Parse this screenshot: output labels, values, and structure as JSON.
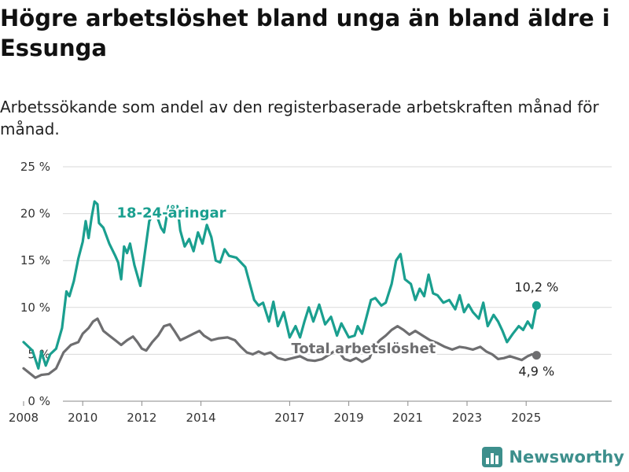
{
  "title": "Högre arbetslöshet bland unga än bland äldre i Essunga",
  "subtitle": "Arbetssökande som andel av den registerbaserade arbetskraften månad för månad.",
  "brand": {
    "name": "Newsworthy",
    "icon": "bar-chart-icon",
    "color": "#3d8f8c"
  },
  "chart_data": {
    "type": "line",
    "title": "",
    "xlabel": "",
    "ylabel": "",
    "ylim": [
      0,
      25
    ],
    "xlim": [
      2007.5,
      2026.0
    ],
    "grid": true,
    "y_ticks": [
      0,
      5,
      10,
      15,
      20,
      25
    ],
    "y_tick_labels": [
      "0 %",
      "5 %",
      "10 %",
      "15 %",
      "20 %",
      "25 %"
    ],
    "x_ticks": [
      2008,
      2010,
      2012,
      2014,
      2017,
      2019,
      2021,
      2023,
      2025
    ],
    "x_tick_labels": [
      "2008",
      "2010",
      "2012",
      "2014",
      "2017",
      "2019",
      "2021",
      "2023",
      "2025"
    ],
    "series": [
      {
        "name": "18-24-åringar",
        "color": "#1a9f8f",
        "end_label": "10,2 %",
        "points": [
          [
            2008.0,
            6.3
          ],
          [
            2008.3,
            5.4
          ],
          [
            2008.5,
            3.5
          ],
          [
            2008.6,
            5.3
          ],
          [
            2008.75,
            3.8
          ],
          [
            2008.9,
            5.0
          ],
          [
            2009.1,
            5.6
          ],
          [
            2009.3,
            7.8
          ],
          [
            2009.45,
            11.7
          ],
          [
            2009.55,
            11.2
          ],
          [
            2009.7,
            12.8
          ],
          [
            2009.85,
            15.2
          ],
          [
            2010.0,
            17.0
          ],
          [
            2010.1,
            19.2
          ],
          [
            2010.2,
            17.4
          ],
          [
            2010.3,
            19.6
          ],
          [
            2010.4,
            21.3
          ],
          [
            2010.5,
            21.0
          ],
          [
            2010.55,
            19.0
          ],
          [
            2010.7,
            18.5
          ],
          [
            2010.9,
            16.8
          ],
          [
            2011.1,
            15.5
          ],
          [
            2011.2,
            14.8
          ],
          [
            2011.3,
            13.0
          ],
          [
            2011.4,
            16.5
          ],
          [
            2011.5,
            15.8
          ],
          [
            2011.6,
            16.8
          ],
          [
            2011.75,
            14.5
          ],
          [
            2011.95,
            12.3
          ],
          [
            2012.1,
            15.8
          ],
          [
            2012.25,
            19.2
          ],
          [
            2012.45,
            20.3
          ],
          [
            2012.65,
            18.5
          ],
          [
            2012.75,
            18.0
          ],
          [
            2012.9,
            20.8
          ],
          [
            2013.05,
            19.8
          ],
          [
            2013.2,
            20.8
          ],
          [
            2013.3,
            18.2
          ],
          [
            2013.45,
            16.5
          ],
          [
            2013.6,
            17.3
          ],
          [
            2013.75,
            16.0
          ],
          [
            2013.9,
            18.0
          ],
          [
            2014.05,
            16.8
          ],
          [
            2014.2,
            18.8
          ],
          [
            2014.35,
            17.5
          ],
          [
            2014.5,
            15.0
          ],
          [
            2014.65,
            14.8
          ],
          [
            2014.8,
            16.2
          ],
          [
            2014.95,
            15.5
          ],
          [
            2015.2,
            15.3
          ],
          [
            2015.5,
            14.3
          ],
          [
            2015.8,
            10.8
          ],
          [
            2015.95,
            10.2
          ],
          [
            2016.1,
            10.5
          ],
          [
            2016.3,
            8.5
          ],
          [
            2016.45,
            10.6
          ],
          [
            2016.6,
            8.0
          ],
          [
            2016.8,
            9.5
          ],
          [
            2017.0,
            6.8
          ],
          [
            2017.2,
            8.0
          ],
          [
            2017.35,
            6.8
          ],
          [
            2017.5,
            8.5
          ],
          [
            2017.65,
            10.0
          ],
          [
            2017.8,
            8.5
          ],
          [
            2018.0,
            10.3
          ],
          [
            2018.2,
            8.2
          ],
          [
            2018.4,
            9.0
          ],
          [
            2018.6,
            7.0
          ],
          [
            2018.75,
            8.3
          ],
          [
            2019.0,
            6.8
          ],
          [
            2019.2,
            7.0
          ],
          [
            2019.3,
            8.0
          ],
          [
            2019.45,
            7.2
          ],
          [
            2019.6,
            9.0
          ],
          [
            2019.75,
            10.8
          ],
          [
            2019.9,
            11.0
          ],
          [
            2020.1,
            10.2
          ],
          [
            2020.25,
            10.5
          ],
          [
            2020.45,
            12.5
          ],
          [
            2020.6,
            15.0
          ],
          [
            2020.75,
            15.7
          ],
          [
            2020.9,
            13.0
          ],
          [
            2021.1,
            12.5
          ],
          [
            2021.25,
            10.8
          ],
          [
            2021.4,
            12.0
          ],
          [
            2021.55,
            11.2
          ],
          [
            2021.7,
            13.5
          ],
          [
            2021.85,
            11.5
          ],
          [
            2022.0,
            11.3
          ],
          [
            2022.2,
            10.5
          ],
          [
            2022.4,
            10.8
          ],
          [
            2022.6,
            9.8
          ],
          [
            2022.75,
            11.3
          ],
          [
            2022.9,
            9.5
          ],
          [
            2023.05,
            10.3
          ],
          [
            2023.2,
            9.5
          ],
          [
            2023.4,
            8.8
          ],
          [
            2023.55,
            10.5
          ],
          [
            2023.7,
            8.0
          ],
          [
            2023.9,
            9.2
          ],
          [
            2024.05,
            8.5
          ],
          [
            2024.2,
            7.5
          ],
          [
            2024.35,
            6.3
          ],
          [
            2024.55,
            7.2
          ],
          [
            2024.75,
            8.0
          ],
          [
            2024.9,
            7.6
          ],
          [
            2025.05,
            8.5
          ],
          [
            2025.2,
            7.8
          ],
          [
            2025.35,
            10.2
          ]
        ]
      },
      {
        "name": "Total arbetslöshet",
        "color": "#6e6e70",
        "end_label": "4,9 %",
        "points": [
          [
            2008.0,
            3.5
          ],
          [
            2008.2,
            3.0
          ],
          [
            2008.4,
            2.5
          ],
          [
            2008.6,
            2.8
          ],
          [
            2008.85,
            2.9
          ],
          [
            2009.1,
            3.5
          ],
          [
            2009.35,
            5.2
          ],
          [
            2009.6,
            6.0
          ],
          [
            2009.85,
            6.3
          ],
          [
            2010.0,
            7.2
          ],
          [
            2010.2,
            7.8
          ],
          [
            2010.35,
            8.5
          ],
          [
            2010.5,
            8.8
          ],
          [
            2010.7,
            7.5
          ],
          [
            2010.9,
            7.0
          ],
          [
            2011.1,
            6.5
          ],
          [
            2011.3,
            6.0
          ],
          [
            2011.5,
            6.5
          ],
          [
            2011.7,
            6.9
          ],
          [
            2011.85,
            6.3
          ],
          [
            2012.0,
            5.6
          ],
          [
            2012.15,
            5.4
          ],
          [
            2012.35,
            6.3
          ],
          [
            2012.55,
            7.0
          ],
          [
            2012.75,
            8.0
          ],
          [
            2012.95,
            8.2
          ],
          [
            2013.1,
            7.5
          ],
          [
            2013.3,
            6.5
          ],
          [
            2013.5,
            6.8
          ],
          [
            2013.75,
            7.2
          ],
          [
            2013.95,
            7.5
          ],
          [
            2014.1,
            7.0
          ],
          [
            2014.35,
            6.5
          ],
          [
            2014.6,
            6.7
          ],
          [
            2014.9,
            6.8
          ],
          [
            2015.15,
            6.5
          ],
          [
            2015.35,
            5.8
          ],
          [
            2015.55,
            5.2
          ],
          [
            2015.75,
            5.0
          ],
          [
            2015.95,
            5.3
          ],
          [
            2016.15,
            5.0
          ],
          [
            2016.35,
            5.2
          ],
          [
            2016.6,
            4.6
          ],
          [
            2016.85,
            4.4
          ],
          [
            2017.1,
            4.6
          ],
          [
            2017.35,
            4.8
          ],
          [
            2017.6,
            4.4
          ],
          [
            2017.85,
            4.3
          ],
          [
            2018.1,
            4.5
          ],
          [
            2018.35,
            5.0
          ],
          [
            2018.6,
            5.5
          ],
          [
            2018.85,
            4.5
          ],
          [
            2019.05,
            4.3
          ],
          [
            2019.25,
            4.6
          ],
          [
            2019.45,
            4.2
          ],
          [
            2019.7,
            4.6
          ],
          [
            2019.85,
            5.8
          ],
          [
            2020.05,
            6.5
          ],
          [
            2020.25,
            7.0
          ],
          [
            2020.45,
            7.6
          ],
          [
            2020.65,
            8.0
          ],
          [
            2020.85,
            7.6
          ],
          [
            2021.05,
            7.1
          ],
          [
            2021.25,
            7.5
          ],
          [
            2021.5,
            7.0
          ],
          [
            2021.75,
            6.5
          ],
          [
            2022.0,
            6.2
          ],
          [
            2022.25,
            5.8
          ],
          [
            2022.5,
            5.5
          ],
          [
            2022.75,
            5.8
          ],
          [
            2022.95,
            5.7
          ],
          [
            2023.2,
            5.5
          ],
          [
            2023.45,
            5.8
          ],
          [
            2023.65,
            5.3
          ],
          [
            2023.85,
            5.0
          ],
          [
            2024.05,
            4.5
          ],
          [
            2024.25,
            4.6
          ],
          [
            2024.45,
            4.8
          ],
          [
            2024.65,
            4.6
          ],
          [
            2024.85,
            4.4
          ],
          [
            2025.05,
            4.8
          ],
          [
            2025.2,
            5.0
          ],
          [
            2025.35,
            4.9
          ]
        ]
      }
    ]
  }
}
